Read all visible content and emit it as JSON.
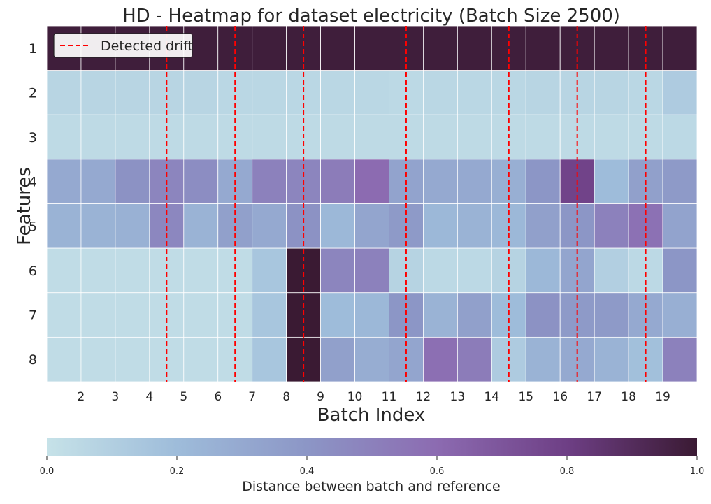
{
  "chart_data": {
    "type": "heatmap",
    "title": "HD - Heatmap for dataset electricity (Batch Size 2500)",
    "xlabel": "Batch Index",
    "ylabel": "Features",
    "x_categories": [
      "2",
      "3",
      "4",
      "5",
      "6",
      "7",
      "8",
      "9",
      "10",
      "11",
      "12",
      "13",
      "14",
      "15",
      "16",
      "17",
      "18",
      "19"
    ],
    "y_categories": [
      "1",
      "2",
      "3",
      "4",
      "5",
      "6",
      "7",
      "8"
    ],
    "values": [
      [
        0.98,
        0.98,
        0.98,
        0.98,
        0.98,
        0.98,
        0.98,
        0.98,
        0.98,
        0.98,
        0.98,
        0.98,
        0.98,
        0.98,
        0.98,
        0.98,
        0.98,
        0.98
      ],
      [
        0.07,
        0.07,
        0.07,
        0.07,
        0.06,
        0.06,
        0.06,
        0.06,
        0.06,
        0.05,
        0.06,
        0.06,
        0.06,
        0.07,
        0.07,
        0.07,
        0.06,
        0.12
      ],
      [
        0.04,
        0.04,
        0.04,
        0.04,
        0.04,
        0.04,
        0.04,
        0.04,
        0.04,
        0.04,
        0.04,
        0.04,
        0.04,
        0.04,
        0.04,
        0.04,
        0.04,
        0.05
      ],
      [
        0.3,
        0.42,
        0.48,
        0.44,
        0.3,
        0.5,
        0.48,
        0.52,
        0.6,
        0.33,
        0.3,
        0.3,
        0.27,
        0.4,
        0.78,
        0.2,
        0.35,
        0.38
      ],
      [
        0.25,
        0.26,
        0.47,
        0.25,
        0.35,
        0.3,
        0.42,
        0.22,
        0.32,
        0.38,
        0.22,
        0.25,
        0.22,
        0.35,
        0.4,
        0.5,
        0.57,
        0.33
      ],
      [
        0.03,
        0.03,
        0.03,
        0.03,
        0.03,
        0.15,
        1.0,
        0.48,
        0.5,
        0.08,
        0.05,
        0.05,
        0.08,
        0.22,
        0.32,
        0.1,
        0.05,
        0.4
      ],
      [
        0.03,
        0.03,
        0.03,
        0.03,
        0.03,
        0.15,
        1.0,
        0.2,
        0.22,
        0.4,
        0.25,
        0.35,
        0.2,
        0.42,
        0.38,
        0.38,
        0.3,
        0.27
      ],
      [
        0.03,
        0.03,
        0.03,
        0.03,
        0.03,
        0.15,
        1.0,
        0.35,
        0.28,
        0.32,
        0.58,
        0.52,
        0.12,
        0.25,
        0.3,
        0.25,
        0.18,
        0.5
      ]
    ],
    "drift_lines": [
      4.0,
      6.0,
      8.0,
      11.0,
      14.0,
      16.0,
      18.0
    ],
    "legend": {
      "label": "Detected drift",
      "color": "#ff0000",
      "style": "dashed",
      "position": "top-left"
    },
    "colorbar": {
      "label": "Distance between batch and reference",
      "range": [
        0.0,
        1.0
      ],
      "ticks": [
        "0.0",
        "0.2",
        "0.4",
        "0.6",
        "0.8",
        "1.0"
      ],
      "orientation": "horizontal",
      "colormap_stops": [
        "#c6e2e8",
        "#9ebcda",
        "#8c96c6",
        "#8c6bb1",
        "#6e3f85",
        "#3a1a33"
      ]
    }
  }
}
